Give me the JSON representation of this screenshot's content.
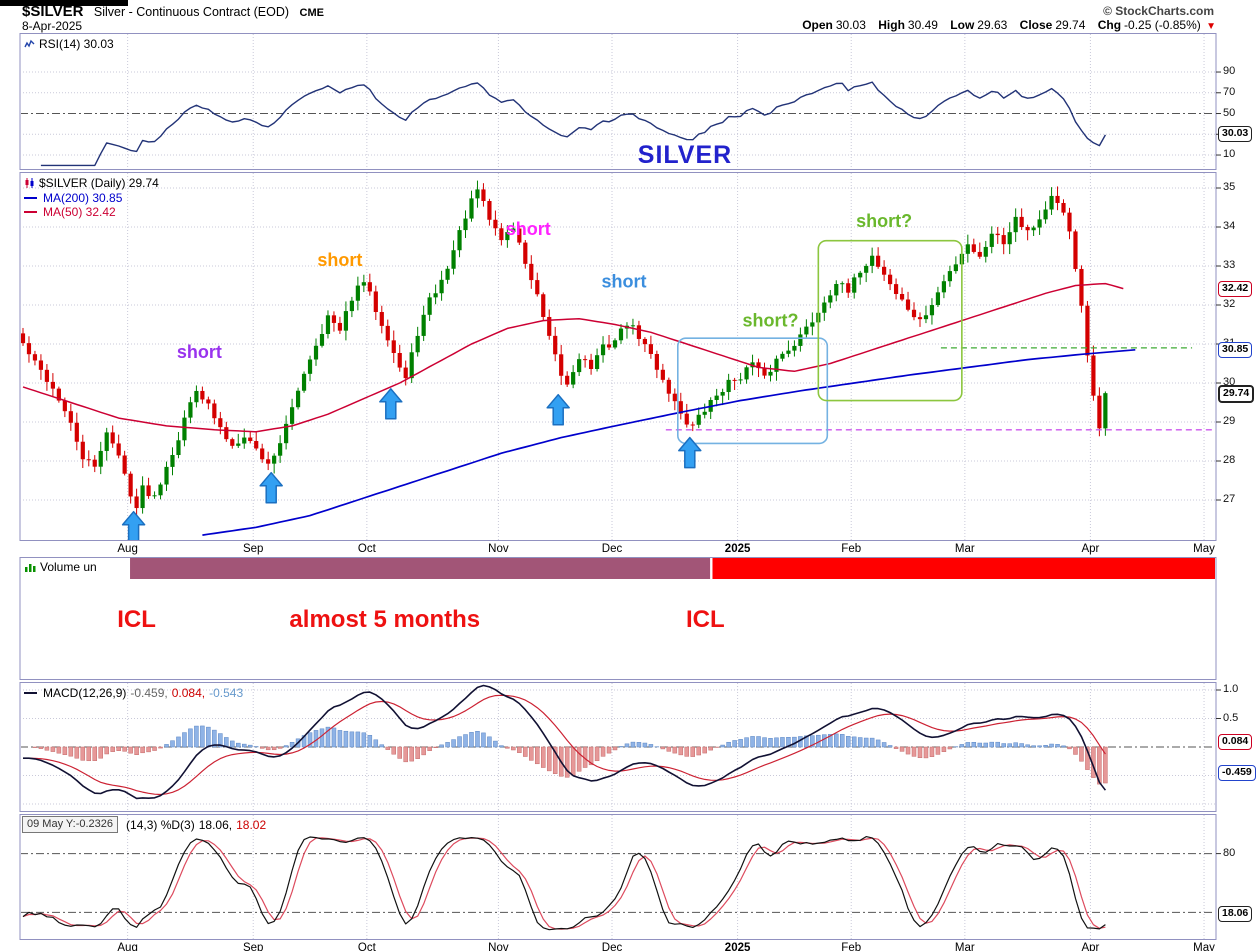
{
  "header": {
    "symbol": "$SILVER",
    "name": "Silver - Continuous Contract (EOD)",
    "exchange": "CME",
    "credit": "© StockCharts.com",
    "date": "8-Apr-2025",
    "quote": {
      "open_label": "Open",
      "open": "30.03",
      "high_label": "High",
      "high": "30.49",
      "low_label": "Low",
      "low": "29.63",
      "close_label": "Close",
      "close": "29.74",
      "chg_label": "Chg",
      "chg": "-0.25 (-0.85%)",
      "chg_arrow": "▼"
    }
  },
  "rsi_panel": {
    "legend": "RSI(14) 30.03",
    "watermark": "SILVER",
    "axis_labels": [
      90,
      70,
      50,
      30,
      10
    ],
    "tag": "30.03"
  },
  "price_panel": {
    "legend_symbol": "$SILVER (Daily) 29.74",
    "legend_ma200": "MA(200) 30.85",
    "legend_ma50": "MA(50) 32.42",
    "axis_labels": [
      35,
      34,
      33,
      32,
      31,
      30,
      29,
      28,
      27
    ],
    "tags": {
      "ma50": "32.42",
      "ma200": "30.85",
      "close": "29.74"
    }
  },
  "volume_panel": {
    "legend": "Volume un"
  },
  "macd_panel": {
    "legend_name": "MACD(12,26,9)",
    "v1": "-0.459,",
    "v2": "0.084,",
    "v3": "-0.543",
    "axis_labels": [
      "1.0",
      "0.5"
    ],
    "tags": {
      "signal": "0.084",
      "line": "-0.459"
    }
  },
  "stoch_panel": {
    "tooltip": "09 May Y:-0.2326",
    "legend_name": "(14,3) %D(3)",
    "k": "18.06,",
    "d": "18.02",
    "axis_labels": [
      "80"
    ],
    "tag": "18.06"
  },
  "chart_data": {
    "type": "candlestick",
    "title": "$SILVER Silver - Continuous Contract (EOD) Daily",
    "panels": [
      "RSI(14)",
      "Price with MA(50) and MA(200)",
      "Volume",
      "MACD(12,26,9)",
      "Slow Stochastic %K(14,3) %D(3)"
    ],
    "seed": 42,
    "timeline": {
      "total_days": 200,
      "last_day": 181
    },
    "months": [
      {
        "label": "Aug",
        "day": 18
      },
      {
        "label": "Sep",
        "day": 39
      },
      {
        "label": "Oct",
        "day": 58
      },
      {
        "label": "Nov",
        "day": 80
      },
      {
        "label": "Dec",
        "day": 99
      },
      {
        "label": "2025",
        "day": 120,
        "bold": true
      },
      {
        "label": "Feb",
        "day": 139
      },
      {
        "label": "Mar",
        "day": 158
      },
      {
        "label": "Apr",
        "day": 179
      },
      {
        "label": "May",
        "day": 198
      }
    ],
    "price": {
      "ylim": [
        26.0,
        35.4
      ],
      "gridlines": [
        27,
        28,
        29,
        30,
        31,
        32,
        33,
        34,
        35
      ],
      "last_close": 29.74,
      "close_anchors": [
        [
          0,
          31.0
        ],
        [
          2,
          30.5
        ],
        [
          4,
          30.1
        ],
        [
          6,
          29.6
        ],
        [
          8,
          28.9
        ],
        [
          10,
          28.1
        ],
        [
          12,
          27.8
        ],
        [
          14,
          28.8
        ],
        [
          16,
          28.1
        ],
        [
          18,
          27.2
        ],
        [
          19,
          26.8
        ],
        [
          20,
          27.3
        ],
        [
          22,
          27.1
        ],
        [
          24,
          27.9
        ],
        [
          26,
          28.6
        ],
        [
          28,
          29.5
        ],
        [
          29,
          29.9
        ],
        [
          31,
          29.4
        ],
        [
          33,
          28.8
        ],
        [
          35,
          28.4
        ],
        [
          37,
          28.7
        ],
        [
          39,
          28.3
        ],
        [
          41,
          27.9
        ],
        [
          43,
          28.5
        ],
        [
          45,
          29.3
        ],
        [
          47,
          30.3
        ],
        [
          49,
          31.0
        ],
        [
          51,
          31.7
        ],
        [
          53,
          31.3
        ],
        [
          55,
          32.2
        ],
        [
          57,
          32.6
        ],
        [
          59,
          31.9
        ],
        [
          61,
          31.2
        ],
        [
          63,
          30.4
        ],
        [
          64,
          30.1
        ],
        [
          66,
          31.3
        ],
        [
          68,
          32.1
        ],
        [
          70,
          32.6
        ],
        [
          72,
          33.4
        ],
        [
          74,
          34.3
        ],
        [
          76,
          34.95
        ],
        [
          78,
          34.2
        ],
        [
          80,
          33.7
        ],
        [
          82,
          34.0
        ],
        [
          84,
          33.1
        ],
        [
          86,
          32.2
        ],
        [
          88,
          31.1
        ],
        [
          90,
          30.2
        ],
        [
          91,
          29.95
        ],
        [
          93,
          30.7
        ],
        [
          95,
          30.4
        ],
        [
          97,
          30.9
        ],
        [
          99,
          31.1
        ],
        [
          101,
          31.55
        ],
        [
          103,
          31.2
        ],
        [
          105,
          30.7
        ],
        [
          107,
          30.1
        ],
        [
          109,
          29.5
        ],
        [
          111,
          29.0
        ],
        [
          112,
          28.9
        ],
        [
          114,
          29.3
        ],
        [
          116,
          29.7
        ],
        [
          118,
          30.0
        ],
        [
          120,
          30.2
        ],
        [
          122,
          30.5
        ],
        [
          124,
          30.1
        ],
        [
          126,
          30.6
        ],
        [
          128,
          30.9
        ],
        [
          130,
          31.2
        ],
        [
          132,
          31.6
        ],
        [
          134,
          32.1
        ],
        [
          136,
          32.6
        ],
        [
          138,
          32.3
        ],
        [
          140,
          32.9
        ],
        [
          142,
          33.25
        ],
        [
          144,
          32.8
        ],
        [
          146,
          32.3
        ],
        [
          148,
          31.9
        ],
        [
          150,
          31.55
        ],
        [
          152,
          32.0
        ],
        [
          154,
          32.6
        ],
        [
          156,
          33.1
        ],
        [
          158,
          33.6
        ],
        [
          160,
          33.2
        ],
        [
          162,
          33.9
        ],
        [
          164,
          33.6
        ],
        [
          166,
          34.3
        ],
        [
          168,
          33.9
        ],
        [
          170,
          34.2
        ],
        [
          172,
          34.75
        ],
        [
          174,
          34.3
        ],
        [
          175,
          33.9
        ],
        [
          176,
          33.0
        ],
        [
          177,
          31.9
        ],
        [
          178,
          30.7
        ],
        [
          179,
          29.6
        ],
        [
          180,
          28.75
        ],
        [
          181,
          29.74
        ]
      ],
      "ma200_anchors": [
        [
          30,
          26.1
        ],
        [
          39,
          26.3
        ],
        [
          48,
          26.6
        ],
        [
          58,
          27.1
        ],
        [
          68,
          27.6
        ],
        [
          80,
          28.2
        ],
        [
          90,
          28.6
        ],
        [
          99,
          28.9
        ],
        [
          110,
          29.25
        ],
        [
          120,
          29.55
        ],
        [
          130,
          29.8
        ],
        [
          139,
          30.0
        ],
        [
          148,
          30.2
        ],
        [
          158,
          30.4
        ],
        [
          168,
          30.6
        ],
        [
          178,
          30.75
        ],
        [
          186,
          30.85
        ]
      ],
      "ma50_anchors": [
        [
          0,
          29.9
        ],
        [
          8,
          29.5
        ],
        [
          16,
          29.1
        ],
        [
          24,
          28.9
        ],
        [
          32,
          28.8
        ],
        [
          39,
          28.75
        ],
        [
          45,
          28.9
        ],
        [
          51,
          29.2
        ],
        [
          57,
          29.6
        ],
        [
          63,
          30.0
        ],
        [
          69,
          30.5
        ],
        [
          75,
          31.0
        ],
        [
          81,
          31.4
        ],
        [
          87,
          31.6
        ],
        [
          93,
          31.65
        ],
        [
          99,
          31.5
        ],
        [
          105,
          31.3
        ],
        [
          111,
          31.0
        ],
        [
          117,
          30.7
        ],
        [
          123,
          30.4
        ],
        [
          129,
          30.3
        ],
        [
          135,
          30.5
        ],
        [
          141,
          30.8
        ],
        [
          147,
          31.1
        ],
        [
          153,
          31.4
        ],
        [
          159,
          31.7
        ],
        [
          165,
          32.0
        ],
        [
          171,
          32.3
        ],
        [
          176,
          32.5
        ],
        [
          181,
          32.55
        ],
        [
          184,
          32.42
        ]
      ]
    },
    "rsi": {
      "period": 14,
      "last": 30.03,
      "ylim": [
        0,
        100
      ],
      "gridlines": [
        90,
        70,
        30,
        10
      ],
      "mid": 50
    },
    "macd": {
      "params": "12,26,9",
      "line": -0.459,
      "signal": 0.084,
      "hist": -0.543,
      "ylim": [
        -1.15,
        1.15
      ],
      "gridlines": [
        1.0,
        0.5,
        -0.5,
        -1.0
      ]
    },
    "stoch": {
      "params": "14,3",
      "k": 18.06,
      "d": 18.02,
      "bands": [
        80,
        20
      ],
      "ylim": [
        0,
        100
      ]
    },
    "tags": {
      "rsi": 30.03,
      "ma50": 32.42,
      "ma200": 30.85,
      "close": 29.74,
      "macd_signal": 0.084,
      "macd_line": -0.459,
      "stoch": 18.06
    },
    "annotations": {
      "shorts": [
        {
          "text": "short",
          "color": "#9933ee",
          "day": 30,
          "price": 30.8
        },
        {
          "text": "short",
          "color": "#ff9900",
          "day": 53.5,
          "price": 33.15
        },
        {
          "text": "short",
          "color": "#ff22ff",
          "day": 85,
          "price": 33.95
        },
        {
          "text": "short",
          "color": "#3b8ede",
          "day": 101,
          "price": 32.6
        },
        {
          "text": "short?",
          "color": "#6ab82d",
          "day": 125.5,
          "price": 31.6
        },
        {
          "text": "short?",
          "color": "#6ab82d",
          "day": 144.5,
          "price": 34.15
        }
      ],
      "arrows": [
        {
          "day": 19,
          "price": 26.7
        },
        {
          "day": 42,
          "price": 27.7
        },
        {
          "day": 62,
          "price": 29.85
        },
        {
          "day": 90,
          "price": 29.7
        },
        {
          "day": 112,
          "price": 28.6
        }
      ],
      "boxes": [
        {
          "day1": 110,
          "day2": 135,
          "low": 28.45,
          "high": 31.15,
          "color": "#74b2e2"
        },
        {
          "day1": 133.5,
          "day2": 157.5,
          "low": 29.55,
          "high": 33.65,
          "color": "#8cc63f"
        }
      ],
      "hlines": [
        {
          "day1": 108,
          "day2": 200,
          "price": 28.8,
          "color": "#cc55ee"
        },
        {
          "day1": 154,
          "day2": 196,
          "price": 30.9,
          "color": "#3faa35"
        }
      ],
      "watermark": {
        "text": "SILVER",
        "color": "#2222cc"
      },
      "cycle_bars": [
        {
          "day1": 18.4,
          "day2": 115.4,
          "color": "#a25577"
        },
        {
          "day1": 115.8,
          "day2": 200,
          "color": "#ff0000"
        }
      ],
      "cycle_labels": [
        {
          "text": "ICL",
          "day": 19.5
        },
        {
          "text": "almost 5 months",
          "day": 61
        },
        {
          "text": "ICL",
          "day": 114.6
        }
      ],
      "cycle_color": "#ee1111"
    },
    "colors": {
      "up": "#008000",
      "down": "#d40000",
      "ma200": "#0000cc",
      "ma50": "#cc0033",
      "rsi": "#223377",
      "macd_line": "#111133",
      "macd_signal": "#cc2233",
      "hist_pos": "#8fb3e6",
      "hist_pos_stroke": "#5b86c4",
      "hist_neg": "#e69898",
      "hist_neg_stroke": "#c46a6a",
      "stoch_k": "#111111",
      "stoch_d": "#dd4b5e",
      "grid": "#c9c9d9",
      "border": "#9191c0",
      "arrow_fill": "#33a0f2",
      "arrow_stroke": "#1b6fc0"
    }
  }
}
